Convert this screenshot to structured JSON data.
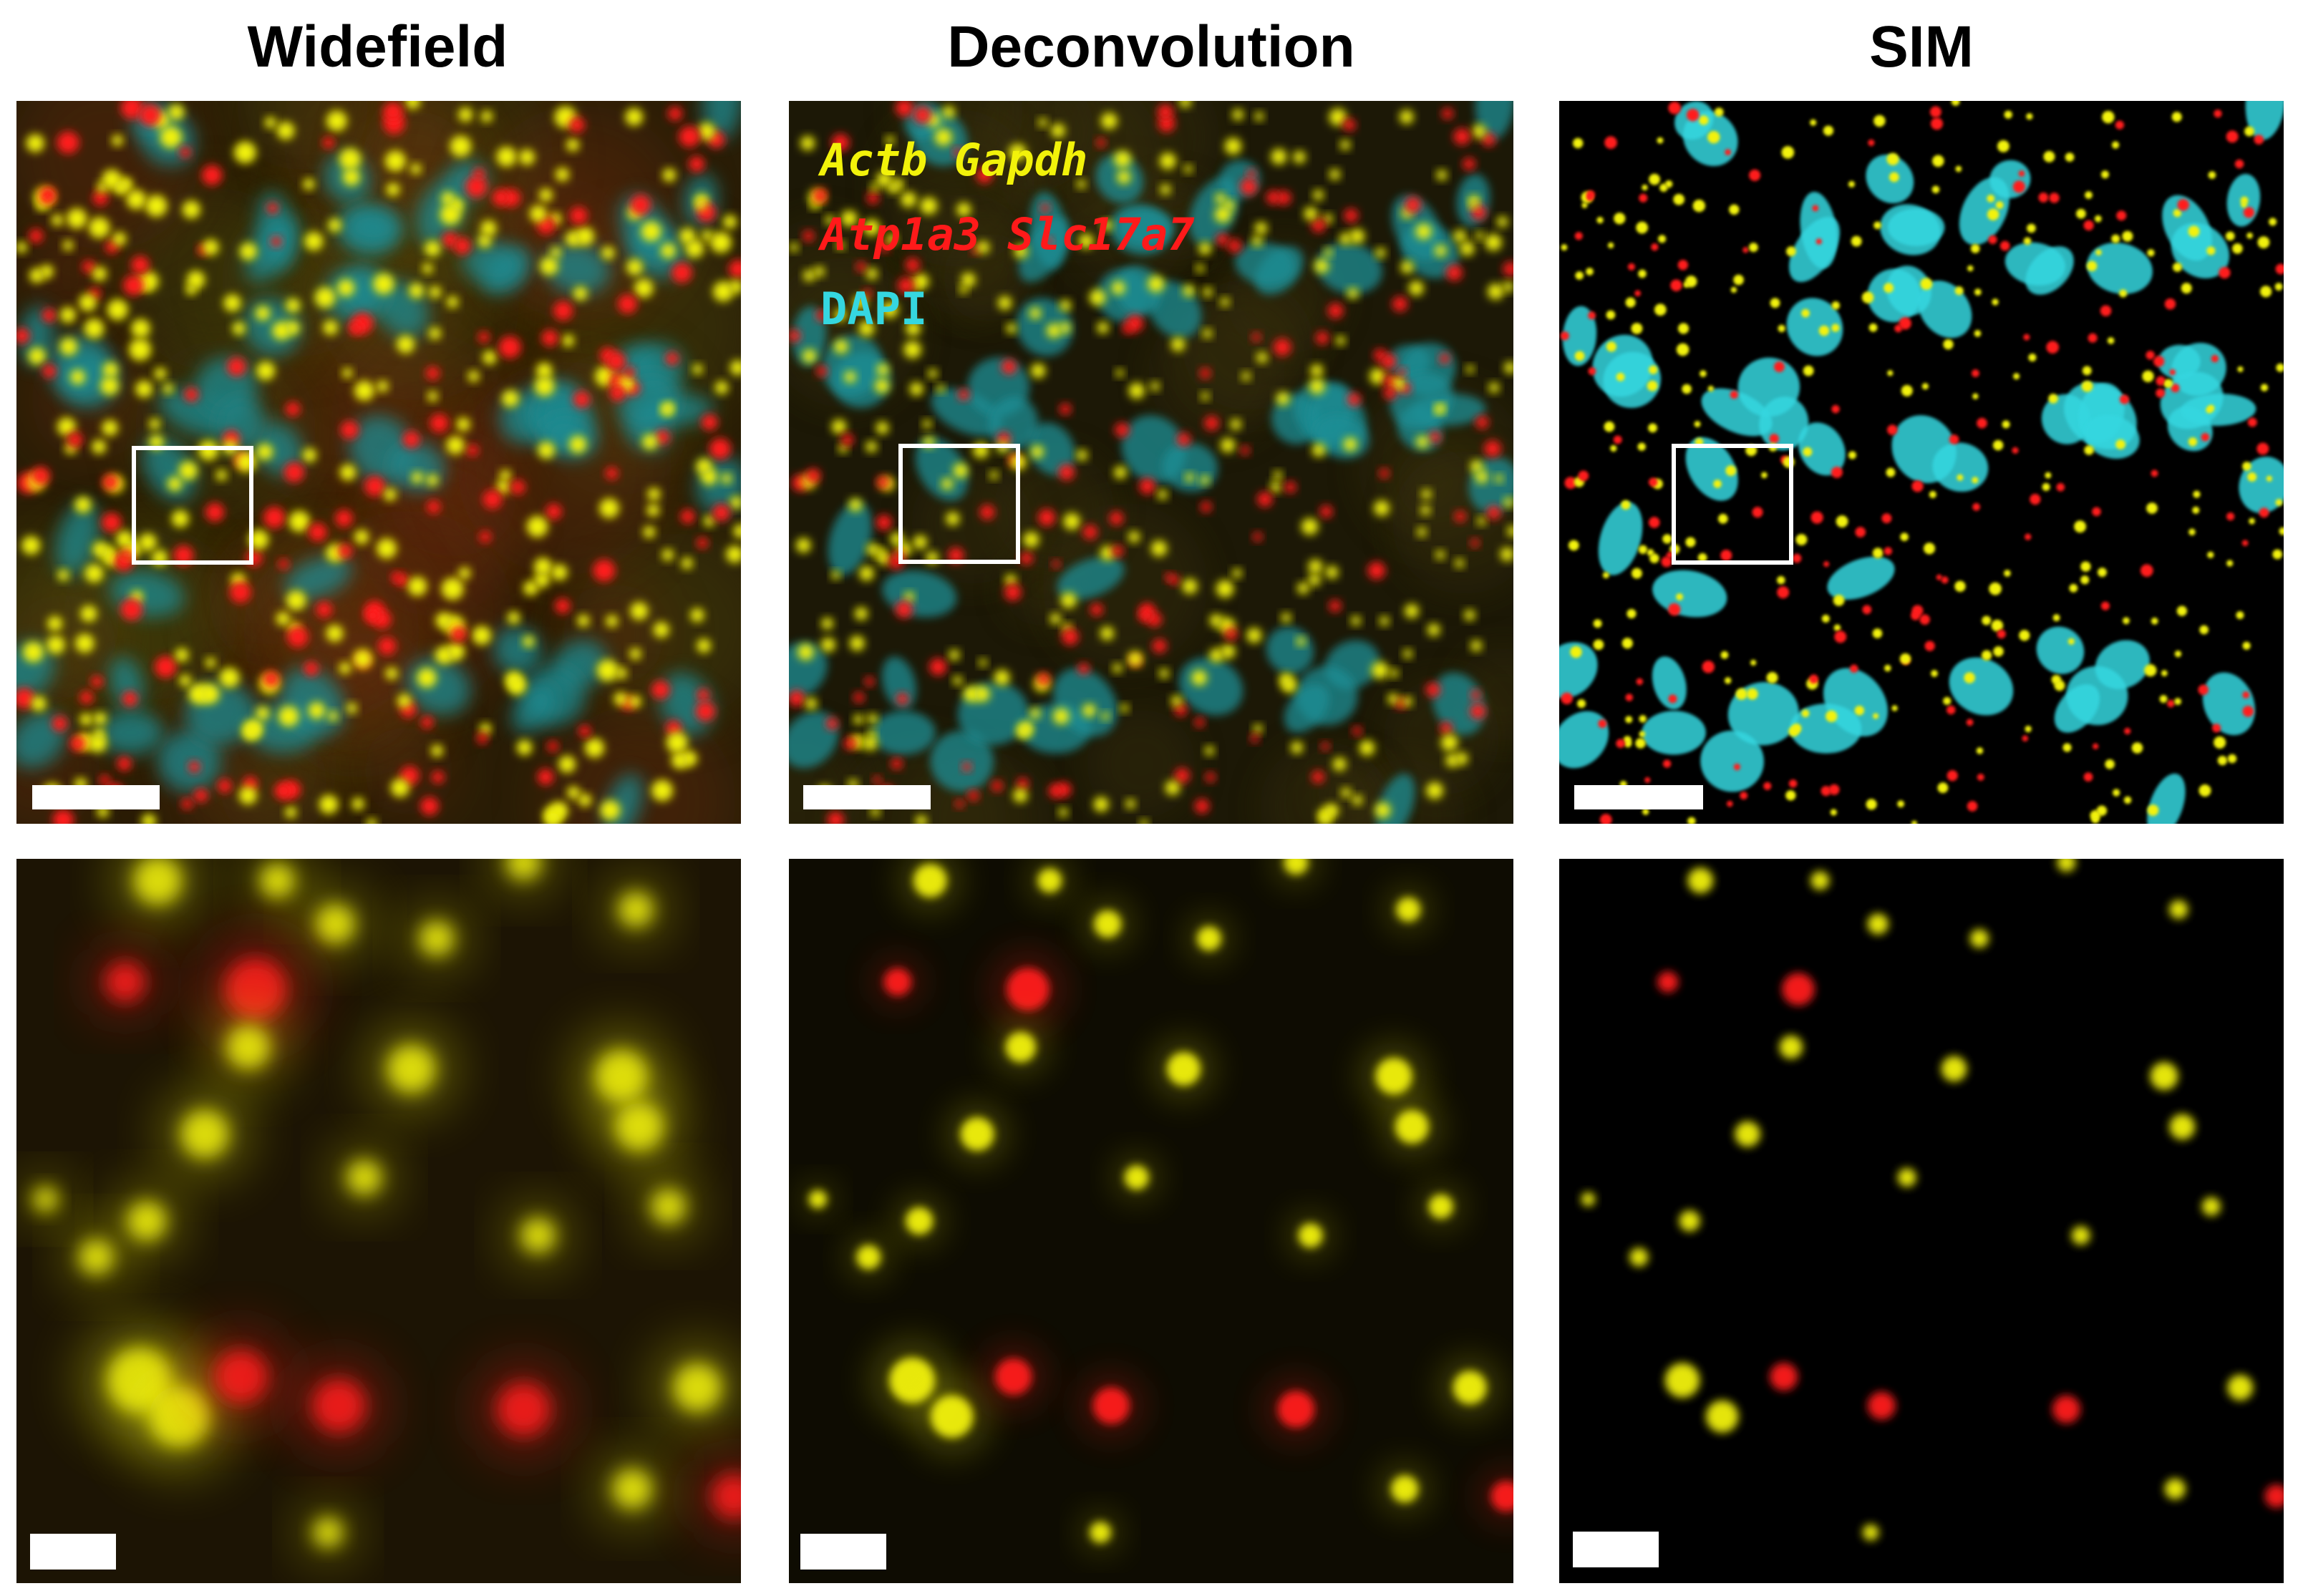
{
  "titles": {
    "widefield": "Widefield",
    "deconvolution": "Deconvolution",
    "sim": "SIM"
  },
  "legend": {
    "line1": "Actb Gapdh",
    "line2": "Atp1a3 Slc17a7",
    "line3": "DAPI"
  },
  "colors": {
    "yellow_channel": "#f2f20a",
    "red_channel": "#ff1a1a",
    "cyan_channel": "#35d7e0",
    "background": "#000000",
    "scalebar": "#ffffff"
  }
}
